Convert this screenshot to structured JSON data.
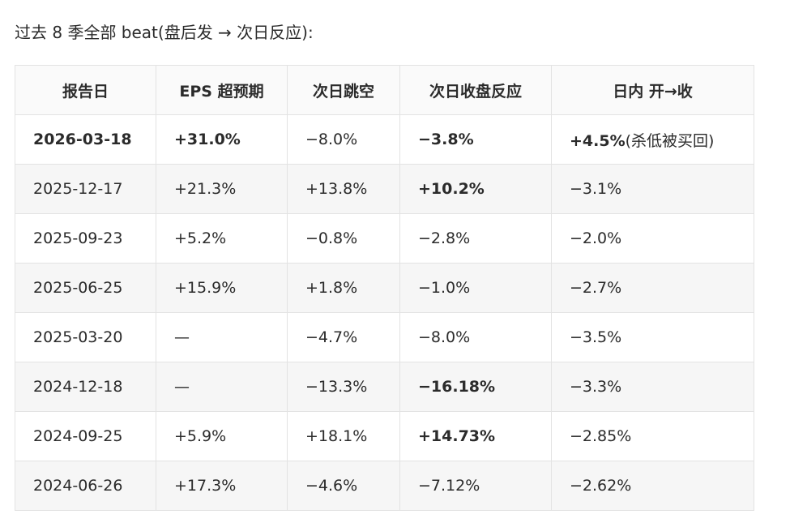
{
  "title": "过去 8 季全部 beat(盘后发 → 次日反应):",
  "table": {
    "headers": [
      "报告日",
      "EPS 超预期",
      "次日跳空",
      "次日收盘反应",
      "日内 开→收"
    ],
    "rows": [
      [
        "2026-03-18",
        "+31.0%",
        "−8.0%",
        "−3.8%",
        [
          "+4.5%",
          "(杀低被买回)"
        ]
      ],
      [
        "2025-12-17",
        "+21.3%",
        "+13.8%",
        "+10.2%",
        "−3.1%"
      ],
      [
        "2025-09-23",
        "+5.2%",
        "−0.8%",
        "−2.8%",
        "−2.0%"
      ],
      [
        "2025-06-25",
        "+15.9%",
        "+1.8%",
        "−1.0%",
        "−2.7%"
      ],
      [
        "2025-03-20",
        "—",
        "−4.7%",
        "−8.0%",
        "−3.5%"
      ],
      [
        "2024-12-18",
        "—",
        "−13.3%",
        "−16.18%",
        "−3.3%"
      ],
      [
        "2024-09-25",
        "+5.9%",
        "+18.1%",
        "+14.73%",
        "−2.85%"
      ],
      [
        "2024-06-26",
        "+17.3%",
        "−4.6%",
        "−7.12%",
        "−2.62%"
      ]
    ]
  }
}
